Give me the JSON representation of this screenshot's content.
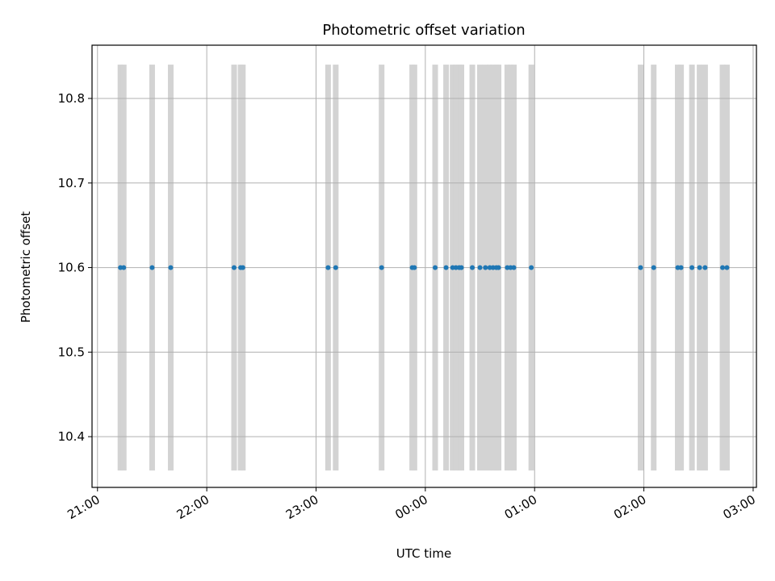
{
  "chart_data": {
    "type": "scatter",
    "title": "Photometric offset variation",
    "xlabel": "UTC time",
    "ylabel": "Photometric offset",
    "x_domain_hours": [
      20.95,
      27.03
    ],
    "ylim": [
      10.34,
      10.863
    ],
    "grid": true,
    "x_ticks": [
      {
        "hour": 21,
        "label": "21:00"
      },
      {
        "hour": 22,
        "label": "22:00"
      },
      {
        "hour": 23,
        "label": "23:00"
      },
      {
        "hour": 24,
        "label": "00:00"
      },
      {
        "hour": 25,
        "label": "01:00"
      },
      {
        "hour": 26,
        "label": "02:00"
      },
      {
        "hour": 27,
        "label": "03:00"
      }
    ],
    "y_ticks": [
      {
        "value": 10.4,
        "label": "10.4"
      },
      {
        "value": 10.5,
        "label": "10.5"
      },
      {
        "value": 10.6,
        "label": "10.6"
      },
      {
        "value": 10.7,
        "label": "10.7"
      },
      {
        "value": 10.8,
        "label": "10.8"
      }
    ],
    "bands": {
      "color": "#d3d3d3",
      "y_range": [
        10.36,
        10.84
      ],
      "x_hours": [
        21.21,
        21.24,
        21.5,
        21.67,
        22.25,
        22.31,
        22.33,
        23.11,
        23.18,
        23.6,
        23.88,
        23.9,
        24.09,
        24.19,
        24.25,
        24.28,
        24.31,
        24.33,
        24.43,
        24.5,
        24.55,
        24.59,
        24.62,
        24.65,
        24.67,
        24.75,
        24.78,
        24.81,
        24.97,
        25.97,
        26.09,
        26.31,
        26.34,
        26.44,
        26.51,
        26.56,
        26.72,
        26.76
      ]
    },
    "series": [
      {
        "color": "#1f77b4",
        "x_hours": [
          21.21,
          21.24,
          21.5,
          21.67,
          22.25,
          22.31,
          22.33,
          23.11,
          23.18,
          23.6,
          23.88,
          23.9,
          24.09,
          24.19,
          24.25,
          24.28,
          24.31,
          24.33,
          24.43,
          24.5,
          24.55,
          24.59,
          24.62,
          24.65,
          24.67,
          24.75,
          24.78,
          24.81,
          24.97,
          25.97,
          26.09,
          26.31,
          26.34,
          26.44,
          26.51,
          26.56,
          26.72,
          26.76
        ],
        "y": [
          10.6,
          10.6,
          10.6,
          10.6,
          10.6,
          10.6,
          10.6,
          10.6,
          10.6,
          10.6,
          10.6,
          10.6,
          10.6,
          10.6,
          10.6,
          10.6,
          10.6,
          10.6,
          10.6,
          10.6,
          10.6,
          10.6,
          10.6,
          10.6,
          10.6,
          10.6,
          10.6,
          10.6,
          10.6,
          10.6,
          10.6,
          10.6,
          10.6,
          10.6,
          10.6,
          10.6,
          10.6,
          10.6
        ]
      }
    ]
  }
}
